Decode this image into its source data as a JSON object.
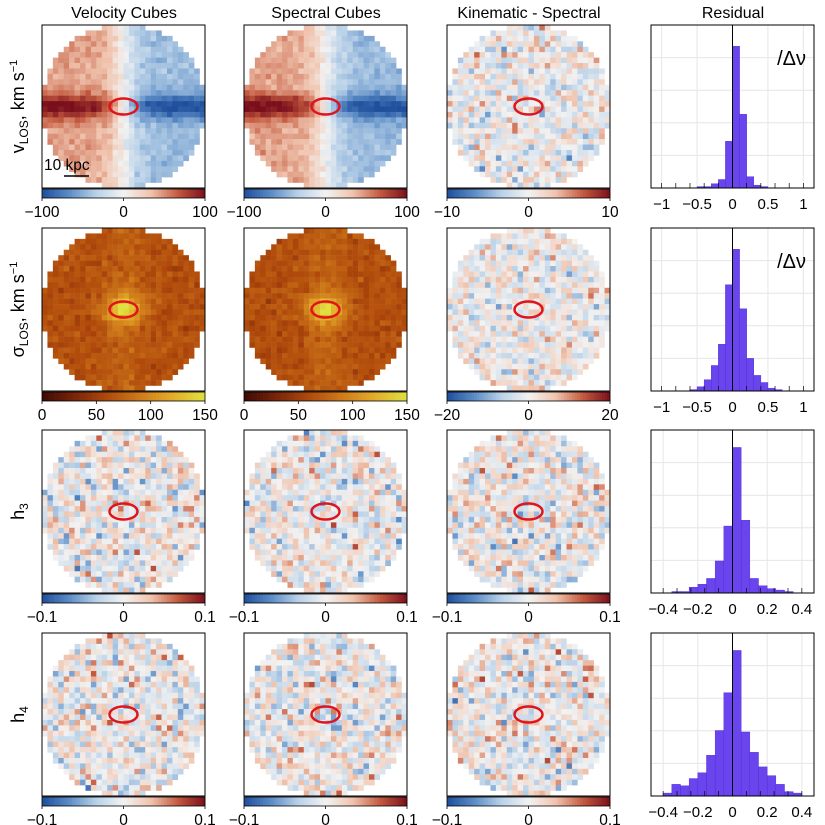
{
  "figure": {
    "column_titles": [
      "Velocity Cubes",
      "Spectral Cubes",
      "Kinematic - Spectral",
      "Residual"
    ],
    "scale_bar_label": "10 kpc",
    "residual_annotation": "/Δν",
    "colors": {
      "diverging": [
        "#1f4e9c",
        "#5b8cc6",
        "#b9d1e8",
        "#f2f2f2",
        "#f0c4ae",
        "#c45a3f",
        "#7a0f1c"
      ],
      "sequential": [
        "#3d0a05",
        "#7a2408",
        "#b04a0c",
        "#cf7a1a",
        "#e3ad2a",
        "#e0e040"
      ],
      "ellipse": "#e0141c",
      "histogram_fill": "#6a45ee"
    }
  },
  "chart_data": [
    {
      "type": "heatmap",
      "row": "v_LOS",
      "column": "Velocity Cubes",
      "row_label": {
        "main": "v",
        "sub": "LOS",
        "units": ", km s",
        "sup": "−1"
      },
      "pattern": "rotation",
      "colormap": "diverging",
      "amplitude": 1.0,
      "noise": 0.15,
      "seed": 11,
      "colorbar": {
        "range": [
          -100,
          100
        ],
        "ticks": [
          "−100",
          "0",
          "100"
        ]
      }
    },
    {
      "type": "heatmap",
      "row": "v_LOS",
      "column": "Spectral Cubes",
      "pattern": "rotation",
      "colormap": "diverging",
      "amplitude": 1.0,
      "noise": 0.15,
      "seed": 23,
      "colorbar": {
        "range": [
          -100,
          100
        ],
        "ticks": [
          "−100",
          "0",
          "100"
        ]
      }
    },
    {
      "type": "heatmap",
      "row": "v_LOS",
      "column": "Kinematic - Spectral",
      "pattern": "noise",
      "colormap": "diverging",
      "amplitude": 0.55,
      "noise": 0.55,
      "seed": 37,
      "colorbar": {
        "range": [
          -10,
          10
        ],
        "ticks": [
          "−10",
          "0",
          "10"
        ]
      }
    },
    {
      "type": "bar",
      "row": "v_LOS",
      "column": "Residual",
      "bin_edges": [
        -1.0,
        -0.9,
        -0.8,
        -0.7,
        -0.6,
        -0.5,
        -0.4,
        -0.3,
        -0.2,
        -0.1,
        0.0,
        0.1,
        0.2,
        0.3,
        0.4,
        0.5,
        0.6,
        0.7,
        0.8,
        0.9,
        1.0
      ],
      "values": [
        0,
        0,
        0,
        0,
        0,
        0.01,
        0.01,
        0.03,
        0.06,
        0.33,
        1.0,
        0.52,
        0.08,
        0.02,
        0.01,
        0,
        0,
        0,
        0,
        0
      ],
      "xlim": [
        -1.15,
        1.15
      ],
      "ylim": [
        0,
        1.15
      ],
      "xticks": [
        -1,
        -0.5,
        0,
        0.5,
        1
      ],
      "xtick_labels": [
        "−1",
        "−0.5",
        "0",
        "0.5",
        "1"
      ],
      "show_annotation": true
    },
    {
      "type": "heatmap",
      "row": "sigma_LOS",
      "column": "Velocity Cubes",
      "row_label": {
        "main": "σ",
        "sub": "LOS",
        "units": ", km s",
        "sup": "−1"
      },
      "pattern": "dispersion",
      "colormap": "sequential",
      "noise": 0.08,
      "seed": 41,
      "colorbar": {
        "range": [
          0,
          150
        ],
        "ticks": [
          "0",
          "50",
          "100",
          "150"
        ]
      }
    },
    {
      "type": "heatmap",
      "row": "sigma_LOS",
      "column": "Spectral Cubes",
      "pattern": "dispersion",
      "colormap": "sequential",
      "noise": 0.08,
      "seed": 53,
      "colorbar": {
        "range": [
          0,
          150
        ],
        "ticks": [
          "0",
          "50",
          "100",
          "150"
        ]
      }
    },
    {
      "type": "heatmap",
      "row": "sigma_LOS",
      "column": "Kinematic - Spectral",
      "pattern": "noise",
      "colormap": "diverging",
      "amplitude": 0.5,
      "noise": 0.5,
      "seed": 61,
      "colorbar": {
        "range": [
          -20,
          20
        ],
        "ticks": [
          "−20",
          "0",
          "20"
        ]
      }
    },
    {
      "type": "bar",
      "row": "sigma_LOS",
      "column": "Residual",
      "bin_edges": [
        -1.0,
        -0.9,
        -0.8,
        -0.7,
        -0.6,
        -0.5,
        -0.4,
        -0.3,
        -0.2,
        -0.1,
        0.0,
        0.1,
        0.2,
        0.3,
        0.4,
        0.5,
        0.6,
        0.7,
        0.8,
        0.9,
        1.0
      ],
      "values": [
        0,
        0,
        0,
        0,
        0.01,
        0.03,
        0.08,
        0.18,
        0.33,
        0.75,
        1.0,
        0.58,
        0.23,
        0.11,
        0.06,
        0.02,
        0.01,
        0,
        0,
        0
      ],
      "xlim": [
        -1.15,
        1.15
      ],
      "ylim": [
        0,
        1.15
      ],
      "xticks": [
        -1,
        -0.5,
        0,
        0.5,
        1
      ],
      "xtick_labels": [
        "−1",
        "−0.5",
        "0",
        "0.5",
        "1"
      ],
      "show_annotation": true
    },
    {
      "type": "heatmap",
      "row": "h3",
      "column": "Velocity Cubes",
      "row_label": {
        "main": "h",
        "sub": "3"
      },
      "pattern": "higher",
      "colormap": "diverging",
      "amplitude": 0.6,
      "noise": 0.6,
      "seed": 71,
      "colorbar": {
        "range": [
          -0.1,
          0.1
        ],
        "ticks": [
          "−0.1",
          "0",
          "0.1"
        ]
      }
    },
    {
      "type": "heatmap",
      "row": "h3",
      "column": "Spectral Cubes",
      "pattern": "higher",
      "colormap": "diverging",
      "amplitude": 0.6,
      "noise": 0.6,
      "seed": 83,
      "colorbar": {
        "range": [
          -0.1,
          0.1
        ],
        "ticks": [
          "−0.1",
          "0",
          "0.1"
        ]
      }
    },
    {
      "type": "heatmap",
      "row": "h3",
      "column": "Kinematic - Spectral",
      "pattern": "higher",
      "colormap": "diverging",
      "amplitude": 0.6,
      "noise": 0.6,
      "seed": 97,
      "colorbar": {
        "range": [
          -0.1,
          0.1
        ],
        "ticks": [
          "−0.1",
          "0",
          "0.1"
        ]
      }
    },
    {
      "type": "bar",
      "row": "h3",
      "column": "Residual",
      "bin_edges": [
        -0.4,
        -0.35,
        -0.3,
        -0.25,
        -0.2,
        -0.15,
        -0.1,
        -0.05,
        0.0,
        0.05,
        0.1,
        0.15,
        0.2,
        0.25,
        0.3,
        0.35,
        0.4
      ],
      "values": [
        0,
        0.01,
        0.01,
        0.04,
        0.06,
        0.1,
        0.22,
        0.46,
        1.0,
        0.5,
        0.1,
        0.05,
        0.03,
        0.02,
        0.01,
        0
      ],
      "xlim": [
        -0.47,
        0.47
      ],
      "ylim": [
        0,
        1.12
      ],
      "xticks": [
        -0.4,
        -0.2,
        0,
        0.2,
        0.4
      ],
      "xtick_labels": [
        "−0.4",
        "−0.2",
        "0",
        "0.2",
        "0.4"
      ],
      "show_annotation": false
    },
    {
      "type": "heatmap",
      "row": "h4",
      "column": "Velocity Cubes",
      "row_label": {
        "main": "h",
        "sub": "4"
      },
      "pattern": "higher",
      "colormap": "diverging",
      "amplitude": 0.6,
      "noise": 0.6,
      "seed": 103,
      "colorbar": {
        "range": [
          -0.1,
          0.1
        ],
        "ticks": [
          "−0.1",
          "0",
          "0.1"
        ]
      }
    },
    {
      "type": "heatmap",
      "row": "h4",
      "column": "Spectral Cubes",
      "pattern": "higher",
      "colormap": "diverging",
      "amplitude": 0.6,
      "noise": 0.6,
      "seed": 109,
      "colorbar": {
        "range": [
          -0.1,
          0.1
        ],
        "ticks": [
          "−0.1",
          "0",
          "0.1"
        ]
      }
    },
    {
      "type": "heatmap",
      "row": "h4",
      "column": "Kinematic - Spectral",
      "pattern": "higher",
      "colormap": "diverging",
      "amplitude": 0.6,
      "noise": 0.6,
      "seed": 127,
      "colorbar": {
        "range": [
          -0.1,
          0.1
        ],
        "ticks": [
          "−0.1",
          "0",
          "0.1"
        ]
      }
    },
    {
      "type": "bar",
      "row": "h4",
      "column": "Residual",
      "bin_edges": [
        -0.4,
        -0.35,
        -0.3,
        -0.25,
        -0.2,
        -0.15,
        -0.1,
        -0.05,
        0.0,
        0.05,
        0.1,
        0.15,
        0.2,
        0.25,
        0.3,
        0.35,
        0.4
      ],
      "values": [
        0.02,
        0.08,
        0.07,
        0.12,
        0.16,
        0.28,
        0.45,
        0.71,
        1.0,
        0.44,
        0.3,
        0.2,
        0.14,
        0.08,
        0.03,
        0.02
      ],
      "xlim": [
        -0.47,
        0.47
      ],
      "ylim": [
        0,
        1.12
      ],
      "xticks": [
        -0.4,
        -0.2,
        0,
        0.2,
        0.4
      ],
      "xtick_labels": [
        "−0.4",
        "−0.2",
        "0",
        "0.2",
        "0.4"
      ],
      "show_annotation": false
    }
  ]
}
